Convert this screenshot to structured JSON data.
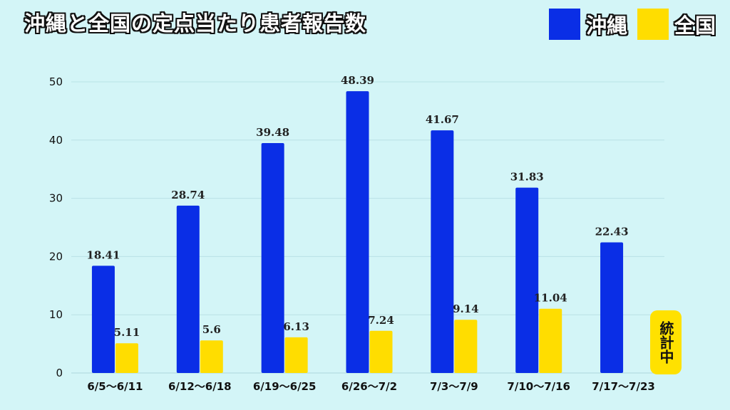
{
  "title": "沖縄と全国の定点当たり患者報告数",
  "colors": {
    "okinawa": "#0a2ee6",
    "national": "#ffdd00",
    "grid": "#b9e2e6",
    "background": "#d3f5f7"
  },
  "pending_label": "統計中",
  "chart_data": {
    "type": "bar",
    "title": "沖縄と全国の定点当たり患者報告数",
    "xlabel": "",
    "ylabel": "",
    "ylim": [
      0,
      50
    ],
    "yticks": [
      0,
      10,
      20,
      30,
      40,
      50
    ],
    "grid": true,
    "legend_position": "top-right",
    "categories": [
      "6/5〜6/11",
      "6/12〜6/18",
      "6/19〜6/25",
      "6/26〜7/2",
      "7/3〜7/9",
      "7/10〜7/16",
      "7/17〜7/23"
    ],
    "series": [
      {
        "name": "沖縄",
        "color": "#0a2ee6",
        "values": [
          18.41,
          28.74,
          39.48,
          48.39,
          41.67,
          31.83,
          22.43
        ]
      },
      {
        "name": "全国",
        "color": "#ffdd00",
        "values": [
          5.11,
          5.6,
          6.13,
          7.24,
          9.14,
          11.04,
          null
        ]
      }
    ]
  }
}
